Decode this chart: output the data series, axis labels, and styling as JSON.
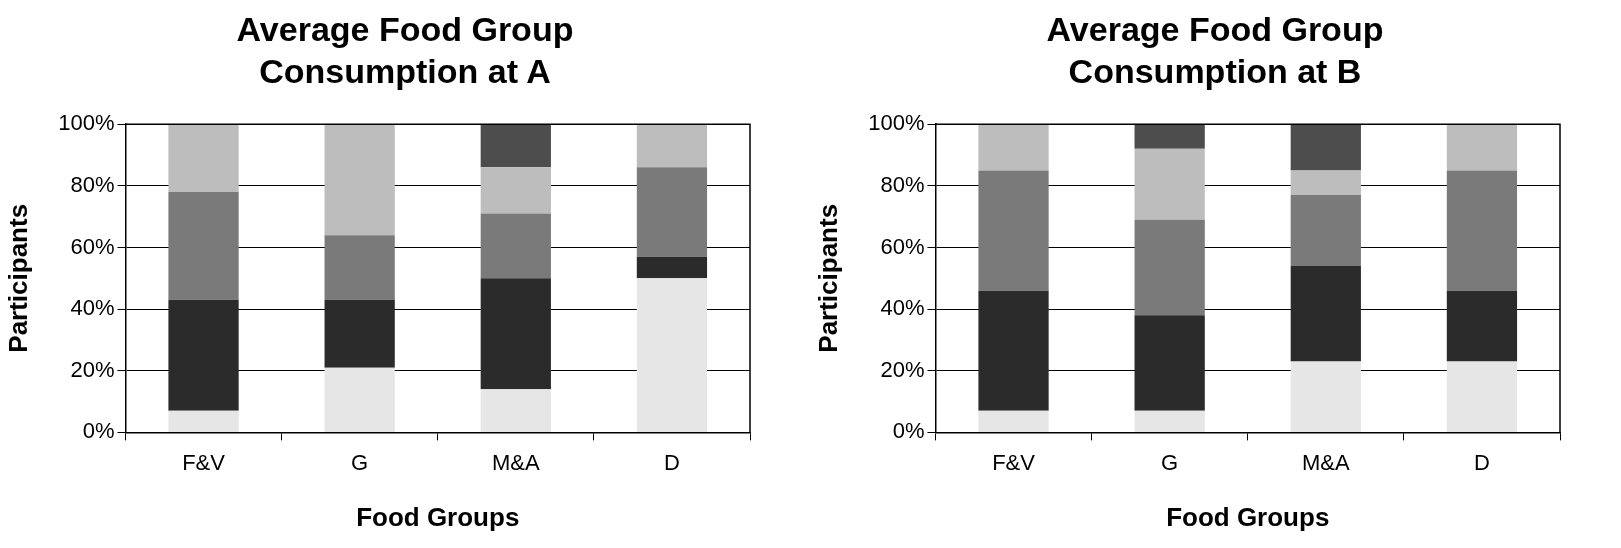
{
  "chart_data": [
    {
      "type": "bar",
      "title": "Average Food Group Consumption at A",
      "xlabel": "Food Groups",
      "ylabel": "Participants",
      "categories": [
        "F&V",
        "G",
        "M&A",
        "D"
      ],
      "stacked": true,
      "ylim": [
        0,
        100
      ],
      "yticks": [
        {
          "value": 0,
          "label": "0%"
        },
        {
          "value": 20,
          "label": "20%"
        },
        {
          "value": 40,
          "label": "40%"
        },
        {
          "value": 60,
          "label": "60%"
        },
        {
          "value": 80,
          "label": "80%"
        },
        {
          "value": 100,
          "label": "100%"
        }
      ],
      "grid": "y",
      "legend": false,
      "series": [
        {
          "color": "#e6e6e6",
          "values": [
            7,
            21,
            14,
            50
          ]
        },
        {
          "color": "#2b2b2b",
          "values": [
            36,
            22,
            36,
            7
          ]
        },
        {
          "color": "#7a7a7a",
          "values": [
            35,
            21,
            21,
            29
          ]
        },
        {
          "color": "#bdbdbd",
          "values": [
            22,
            36,
            15,
            14
          ]
        },
        {
          "color": "#4d4d4d",
          "values": [
            0,
            0,
            14,
            0
          ]
        }
      ]
    },
    {
      "type": "bar",
      "title": "Average Food Group Consumption at B",
      "xlabel": "Food Groups",
      "ylabel": "Participants",
      "categories": [
        "F&V",
        "G",
        "M&A",
        "D"
      ],
      "stacked": true,
      "ylim": [
        0,
        100
      ],
      "yticks": [
        {
          "value": 0,
          "label": "0%"
        },
        {
          "value": 20,
          "label": "20%"
        },
        {
          "value": 40,
          "label": "40%"
        },
        {
          "value": 60,
          "label": "60%"
        },
        {
          "value": 80,
          "label": "80%"
        },
        {
          "value": 100,
          "label": "100%"
        }
      ],
      "grid": "y",
      "legend": false,
      "series": [
        {
          "color": "#e6e6e6",
          "values": [
            7,
            7,
            23,
            23
          ]
        },
        {
          "color": "#2b2b2b",
          "values": [
            39,
            31,
            31,
            23
          ]
        },
        {
          "color": "#7a7a7a",
          "values": [
            39,
            31,
            23,
            39
          ]
        },
        {
          "color": "#bdbdbd",
          "values": [
            15,
            23,
            8,
            15
          ]
        },
        {
          "color": "#4d4d4d",
          "values": [
            0,
            8,
            15,
            0
          ]
        }
      ]
    }
  ]
}
